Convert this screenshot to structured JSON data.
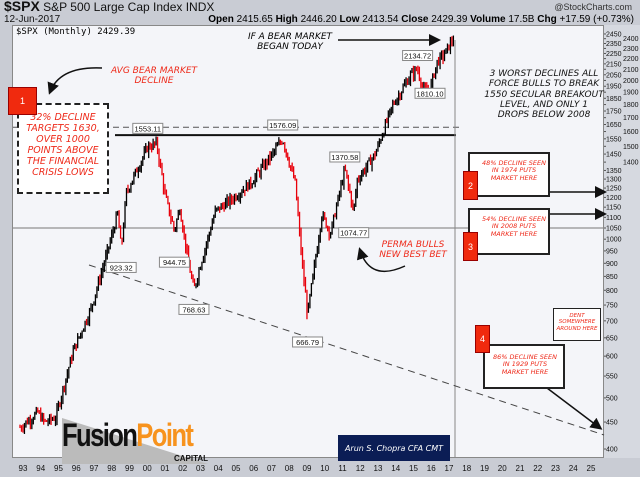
{
  "header": {
    "symbol": "$SPX",
    "name": "S&P 500 Large Cap Index",
    "exchange": "INDX",
    "date": "12-Jun-2017",
    "source": "@StockCharts.com",
    "open_label": "Open",
    "open": "2415.65",
    "high_label": "High",
    "high": "2446.20",
    "low_label": "Low",
    "low": "2413.54",
    "close_label": "Close",
    "close": "2429.39",
    "volume_label": "Volume",
    "volume": "17.5B",
    "chg_label": "Chg",
    "chg": "+17.59 (+0.73%)"
  },
  "legend": "$SPX (Monthly) 2429.39",
  "annotations": {
    "bear_today": "If a bear market began today",
    "avg_bear": "Avg bear market decline",
    "box1_num": "1",
    "box1": "32% decline targets 1630, over 1000 points above the financial crisis lows",
    "worst3": "3 worst declines all force bulls to break 1550 secular breakout level, and only 1 drops below 2008",
    "box2_num": "2",
    "box2": "48% decline seen in 1974 puts market here",
    "box3_num": "3",
    "box3": "54% decline seen in 2008 puts market here",
    "box4_num": "4",
    "box4": "86% decline seen in 1929 puts market here",
    "dent": "Dent somewhere around here",
    "perma": "Perma bulls new best bet",
    "author": "Arun S. Chopra CFA CMT",
    "logo_a": "Fusion",
    "logo_b": "Point",
    "logo_c": "CAPITAL"
  },
  "chart_data": {
    "type": "line",
    "title": "$SPX (Monthly)",
    "yscale": "log",
    "ylim": [
      380,
      2470
    ],
    "yticks": [
      400,
      450,
      500,
      550,
      600,
      650,
      700,
      750,
      800,
      850,
      900,
      950,
      1000,
      1050,
      1100,
      1150,
      1200,
      1250,
      1300,
      1350,
      1400,
      1450,
      1500,
      1550,
      1600,
      1650,
      1700,
      1750,
      1800,
      1850,
      1900,
      1950,
      2000,
      2050,
      2100,
      2150,
      2200,
      2250,
      2300,
      2350,
      2400,
      2450
    ],
    "xticks": [
      "93",
      "94",
      "95",
      "96",
      "97",
      "98",
      "99",
      "00",
      "01",
      "02",
      "03",
      "04",
      "05",
      "06",
      "07",
      "08",
      "09",
      "10",
      "11",
      "12",
      "13",
      "14",
      "15",
      "16",
      "17",
      "18",
      "19",
      "20",
      "21",
      "22",
      "23",
      "24",
      "25"
    ],
    "xlim": [
      1993,
      2026
    ],
    "points": [
      [
        1993.0,
        440
      ],
      [
        1994.0,
        470
      ],
      [
        1994.4,
        450
      ],
      [
        1995.0,
        460
      ],
      [
        1996.0,
        615
      ],
      [
        1997.0,
        740
      ],
      [
        1998.0,
        970
      ],
      [
        1998.5,
        1120
      ],
      [
        1998.7,
        960
      ],
      [
        1999.0,
        1230
      ],
      [
        2000.2,
        1500
      ],
      [
        2000.7,
        1520
      ],
      [
        2001.2,
        1200
      ],
      [
        2001.7,
        1040
      ],
      [
        2002.0,
        1150
      ],
      [
        2002.5,
        900
      ],
      [
        2002.8,
        800
      ],
      [
        2003.0,
        855
      ],
      [
        2004.0,
        1130
      ],
      [
        2005.0,
        1200
      ],
      [
        2006.0,
        1280
      ],
      [
        2007.0,
        1420
      ],
      [
        2007.8,
        1550
      ],
      [
        2008.5,
        1280
      ],
      [
        2008.9,
        900
      ],
      [
        2009.2,
        720
      ],
      [
        2010.0,
        1115
      ],
      [
        2010.5,
        1030
      ],
      [
        2011.3,
        1360
      ],
      [
        2011.8,
        1130
      ],
      [
        2012.0,
        1300
      ],
      [
        2013.0,
        1450
      ],
      [
        2014.0,
        1800
      ],
      [
        2015.0,
        2050
      ],
      [
        2015.4,
        2110
      ],
      [
        2015.7,
        1920
      ],
      [
        2016.1,
        1930
      ],
      [
        2016.5,
        2170
      ],
      [
        2017.0,
        2270
      ],
      [
        2017.45,
        2430
      ]
    ],
    "labels": [
      [
        2000.2,
        "1553.11",
        1553.11
      ],
      [
        2007.8,
        "1576.09",
        1576.09
      ],
      [
        1998.7,
        "923.32",
        923.32
      ],
      [
        2001.7,
        "944.75",
        944.75
      ],
      [
        2002.8,
        "768.63",
        768.63
      ],
      [
        2009.2,
        "666.79",
        666.79
      ],
      [
        2011.3,
        "1370.58",
        1370.58
      ],
      [
        2011.8,
        "1074.77",
        1074.77
      ],
      [
        2015.4,
        "2134.72",
        2134.72
      ],
      [
        2016.1,
        "1810.10",
        1810.1
      ]
    ],
    "levels": {
      "target_dashed": 1630,
      "breakout": 1575,
      "support": 1050
    },
    "up_color": "#000000",
    "down_color": "#e8000b"
  }
}
